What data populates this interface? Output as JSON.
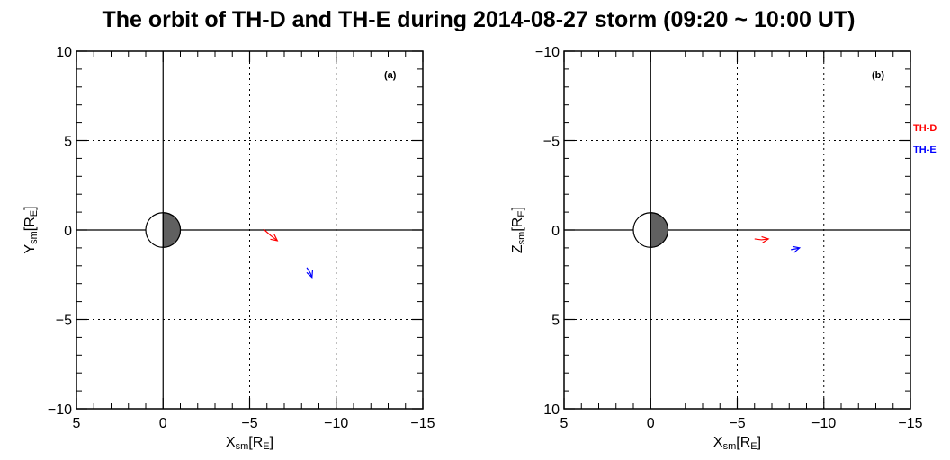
{
  "title": "The orbit of TH-D and TH-E during 2014-08-27 storm (09:20 ~ 10:00 UT)",
  "colors": {
    "th_d": "#ff0000",
    "th_e": "#0000ff",
    "night": "#606060"
  },
  "legend": [
    {
      "label": "TH-D",
      "color": "#ff0000"
    },
    {
      "label": "TH-E",
      "color": "#0000ff"
    }
  ],
  "chart_data": [
    {
      "type": "line",
      "panel_label": "(a)",
      "xlabel": {
        "main": "X",
        "sub": "sm",
        "unit": "[R",
        "unit_sub": "E",
        "close": "]"
      },
      "ylabel": {
        "main": "Y",
        "sub": "sm",
        "unit": "[R",
        "unit_sub": "E",
        "close": "]"
      },
      "xlim": [
        5,
        -15
      ],
      "ylim": [
        10,
        -10
      ],
      "xticks": [
        5,
        0,
        -5,
        -10,
        -15
      ],
      "xtick_labels": [
        "5",
        "0",
        "−5",
        "−10",
        "−15"
      ],
      "yticks": [
        -10,
        -5,
        0,
        5,
        10
      ],
      "ytick_labels": [
        "−10",
        "−5",
        "0",
        "5",
        "10"
      ],
      "dotted_grid_x": [
        -5,
        -10
      ],
      "dotted_grid_y": [
        -5,
        5
      ],
      "series": [
        {
          "name": "TH-D",
          "color": "#ff0000",
          "x": [
            -5.8,
            -6.2,
            -6.6
          ],
          "y": [
            0.05,
            -0.3,
            -0.6
          ]
        },
        {
          "name": "TH-E",
          "color": "#0000ff",
          "x": [
            -8.3,
            -8.5,
            -8.6
          ],
          "y": [
            -2.1,
            -2.4,
            -2.65
          ]
        }
      ]
    },
    {
      "type": "line",
      "panel_label": "(b)",
      "xlabel": {
        "main": "X",
        "sub": "sm",
        "unit": "[R",
        "unit_sub": "E",
        "close": "]"
      },
      "ylabel": {
        "main": "Z",
        "sub": "sm",
        "unit": "[R",
        "unit_sub": "E",
        "close": "]"
      },
      "xlim": [
        5,
        -15
      ],
      "ylim": [
        -10,
        10
      ],
      "xticks": [
        5,
        0,
        -5,
        -10,
        -15
      ],
      "xtick_labels": [
        "5",
        "0",
        "−5",
        "−10",
        "−15"
      ],
      "yticks": [
        -10,
        -5,
        0,
        5,
        10
      ],
      "ytick_labels": [
        "−10",
        "−5",
        "0",
        "5",
        "10"
      ],
      "dotted_grid_x": [
        -5,
        -10
      ],
      "dotted_grid_y": [
        -5,
        5
      ],
      "series": [
        {
          "name": "TH-D",
          "color": "#ff0000",
          "x": [
            -6.0,
            -6.4,
            -6.8
          ],
          "y": [
            0.5,
            0.55,
            0.5
          ]
        },
        {
          "name": "TH-E",
          "color": "#0000ff",
          "x": [
            -8.1,
            -8.4,
            -8.6
          ],
          "y": [
            1.1,
            1.05,
            1.0
          ]
        }
      ]
    }
  ]
}
